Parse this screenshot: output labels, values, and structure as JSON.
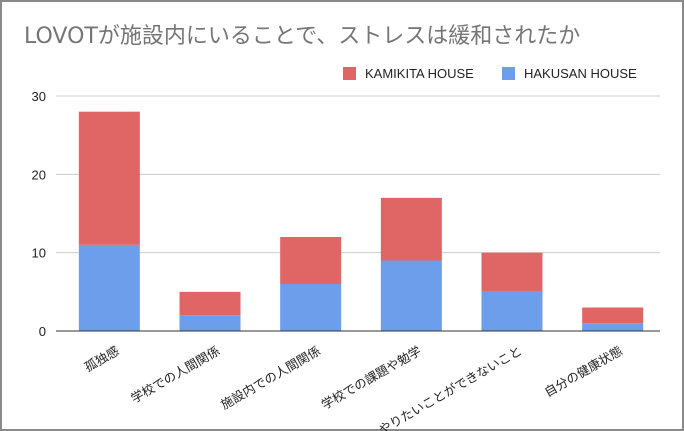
{
  "chart_data": {
    "type": "bar",
    "stacked": true,
    "title": "LOVOTが施設内にいることで、ストレスは緩和されたか",
    "categories": [
      "孤独感",
      "学校での人間関係",
      "施設内での人間関係",
      "学校での課題や勉学",
      "やりたいことができないこと",
      "自分の健康状態"
    ],
    "series": [
      {
        "name": "HAKUSAN HOUSE",
        "values": [
          11,
          2,
          6,
          9,
          5,
          1
        ],
        "color": "#6d9eeb"
      },
      {
        "name": "KAMIKITA HOUSE",
        "values": [
          17,
          3,
          6,
          8,
          5,
          2
        ],
        "color": "#e06666"
      }
    ],
    "legend_order": [
      "KAMIKITA HOUSE",
      "HAKUSAN HOUSE"
    ],
    "ylim": [
      0,
      30
    ],
    "yticks": [
      0,
      10,
      20,
      30
    ],
    "xlabel": "",
    "ylabel": "",
    "grid": true,
    "legend_position": "top-right"
  }
}
